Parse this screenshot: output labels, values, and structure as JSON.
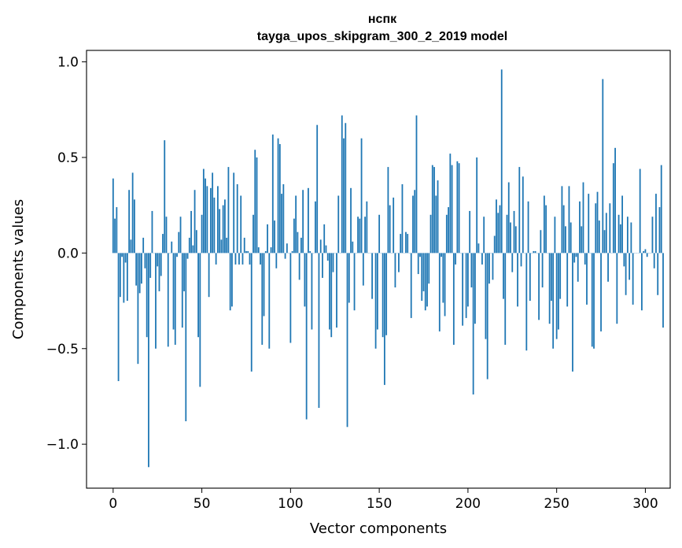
{
  "chart_data": {
    "type": "bar",
    "title_lines": [
      "нспк",
      "tayga_upos_skipgram_300_2_2019 model"
    ],
    "xlabel": "Vector components",
    "ylabel": "Components values",
    "xlim": [
      -15,
      314
    ],
    "ylim": [
      -1.23,
      1.06
    ],
    "x_ticks": [
      0,
      50,
      100,
      150,
      200,
      250,
      300
    ],
    "x_tick_labels": [
      "0",
      "50",
      "100",
      "150",
      "200",
      "250",
      "300"
    ],
    "y_ticks": [
      -1.0,
      -0.5,
      0.0,
      0.5,
      1.0
    ],
    "y_tick_labels": [
      "−1.0",
      "−0.5",
      "0.0",
      "0.5",
      "1.0"
    ],
    "grid": false,
    "bar_color": "#1f77b4",
    "values": [
      0.39,
      0.18,
      0.24,
      -0.67,
      -0.23,
      -0.02,
      -0.26,
      -0.05,
      -0.25,
      0.33,
      0.07,
      0.42,
      0.28,
      -0.17,
      -0.58,
      -0.21,
      -0.16,
      0.08,
      -0.08,
      -0.44,
      -1.12,
      -0.13,
      0.22,
      0.0,
      -0.5,
      -0.07,
      -0.2,
      -0.12,
      0.1,
      0.59,
      0.19,
      -0.49,
      0.0,
      0.06,
      -0.4,
      -0.48,
      -0.02,
      0.11,
      0.19,
      -0.39,
      -0.2,
      -0.88,
      -0.03,
      0.08,
      0.22,
      0.04,
      0.33,
      0.12,
      -0.44,
      -0.7,
      0.2,
      0.44,
      0.39,
      0.35,
      -0.23,
      0.34,
      0.42,
      0.29,
      -0.06,
      0.35,
      0.23,
      0.07,
      0.25,
      0.28,
      0.08,
      0.45,
      -0.3,
      -0.28,
      0.42,
      -0.06,
      0.36,
      -0.06,
      0.3,
      -0.06,
      0.08,
      0.01,
      0.01,
      -0.06,
      -0.62,
      0.2,
      0.54,
      0.5,
      0.03,
      -0.06,
      -0.48,
      -0.33,
      0.01,
      0.15,
      -0.5,
      0.03,
      0.62,
      0.17,
      -0.08,
      0.6,
      0.57,
      0.31,
      0.36,
      -0.03,
      0.05,
      0.0,
      -0.47,
      0.01,
      0.18,
      0.3,
      0.11,
      -0.14,
      0.08,
      0.33,
      -0.28,
      -0.87,
      0.34,
      0.01,
      -0.4,
      0.0,
      0.27,
      0.67,
      -0.81,
      0.07,
      -0.13,
      0.15,
      0.04,
      -0.04,
      -0.4,
      -0.44,
      -0.1,
      0.0,
      -0.39,
      0.3,
      0.0,
      0.72,
      0.6,
      0.68,
      -0.91,
      -0.26,
      0.34,
      0.06,
      -0.3,
      0.0,
      0.19,
      0.18,
      0.6,
      -0.17,
      0.19,
      0.27,
      0.0,
      0.0,
      -0.24,
      0.0,
      -0.5,
      -0.4,
      0.2,
      0.0,
      -0.44,
      -0.69,
      -0.43,
      0.45,
      0.25,
      0.0,
      0.29,
      -0.18,
      0.0,
      -0.1,
      0.1,
      0.36,
      0.0,
      0.11,
      0.1,
      0.0,
      -0.34,
      0.3,
      0.33,
      0.72,
      -0.11,
      -0.02,
      -0.25,
      -0.2,
      -0.3,
      -0.28,
      -0.16,
      0.2,
      0.46,
      0.45,
      0.3,
      0.38,
      -0.41,
      -0.02,
      -0.26,
      -0.33,
      0.2,
      0.24,
      0.52,
      0.46,
      -0.48,
      -0.06,
      0.48,
      0.47,
      0.0,
      -0.38,
      0.0,
      -0.34,
      -0.28,
      0.22,
      -0.18,
      -0.74,
      -0.37,
      0.5,
      0.05,
      0.0,
      -0.06,
      0.19,
      -0.45,
      -0.66,
      -0.16,
      0.0,
      -0.14,
      0.09,
      0.28,
      0.21,
      0.25,
      0.96,
      -0.24,
      -0.48,
      0.2,
      0.37,
      0.16,
      -0.1,
      0.22,
      0.14,
      -0.28,
      0.45,
      -0.07,
      0.4,
      0.0,
      -0.51,
      0.27,
      -0.25,
      0.0,
      0.01,
      0.01,
      0.0,
      -0.35,
      0.12,
      -0.18,
      0.3,
      0.25,
      0.0,
      -0.37,
      -0.25,
      -0.5,
      0.19,
      -0.45,
      -0.4,
      -0.24,
      0.35,
      0.25,
      0.14,
      -0.28,
      0.35,
      0.16,
      -0.62,
      -0.05,
      -0.02,
      -0.15,
      0.27,
      0.14,
      0.37,
      -0.06,
      -0.27,
      0.31,
      0.0,
      -0.49,
      -0.5,
      0.26,
      0.32,
      0.17,
      -0.41,
      0.91,
      0.12,
      0.21,
      -0.15,
      0.26,
      0.0,
      0.47,
      0.55,
      -0.37,
      0.2,
      0.15,
      0.3,
      -0.07,
      -0.22,
      0.19,
      -0.14,
      0.16,
      -0.27,
      0.0,
      0.0,
      0.0,
      0.44,
      -0.3,
      0.01,
      0.02,
      -0.02,
      0.0,
      0.0,
      0.19,
      -0.08,
      0.31,
      -0.22,
      0.24,
      0.46,
      -0.39
    ]
  }
}
